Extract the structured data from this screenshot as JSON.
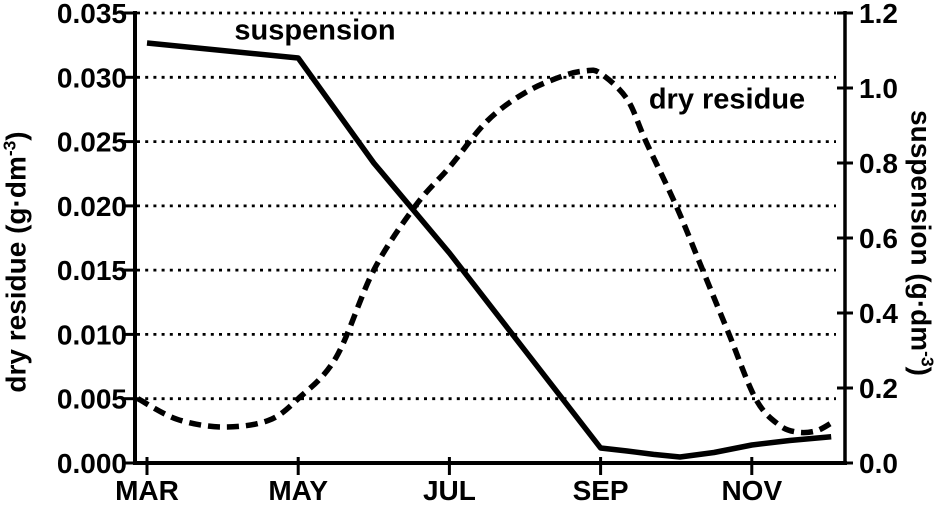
{
  "colors": {
    "foreground": "#000000",
    "background": "#ffffff"
  },
  "chart_data": {
    "type": "line",
    "title": "",
    "x_axis": {
      "unit": "month",
      "ticks": [
        {
          "month": 3,
          "label": "MAR"
        },
        {
          "month": 5,
          "label": "MAY"
        },
        {
          "month": 7,
          "label": "JUL"
        },
        {
          "month": 9,
          "label": "SEP"
        },
        {
          "month": 11,
          "label": "NOV"
        }
      ],
      "range_months": [
        2.83,
        12.23
      ]
    },
    "left_axis": {
      "title": {
        "prefix": "dry residue (g·dm",
        "sup": "-3",
        "suffix": ")"
      },
      "min": 0,
      "max": 0.035,
      "ticks": [
        {
          "v": 0.035,
          "label": "0.035"
        },
        {
          "v": 0.03,
          "label": "0.030"
        },
        {
          "v": 0.025,
          "label": "0.025"
        },
        {
          "v": 0.02,
          "label": "0.020"
        },
        {
          "v": 0.015,
          "label": "0.015"
        },
        {
          "v": 0.01,
          "label": "0.010"
        },
        {
          "v": 0.005,
          "label": "0.005"
        },
        {
          "v": 0.0,
          "label": "0.000"
        }
      ],
      "gridlines_dotted": true
    },
    "right_axis": {
      "title": {
        "prefix": "suspension (g·dm",
        "sup": "-3",
        "suffix": ")"
      },
      "min": 0,
      "max": 1.2,
      "ticks": [
        {
          "v": 1.2,
          "label": "1.2"
        },
        {
          "v": 1.0,
          "label": "1.0"
        },
        {
          "v": 0.8,
          "label": "0.8"
        },
        {
          "v": 0.6,
          "label": "0.6"
        },
        {
          "v": 0.4,
          "label": "0.4"
        },
        {
          "v": 0.2,
          "label": "0.2"
        },
        {
          "v": 0.0,
          "label": "0.0"
        }
      ]
    },
    "series": [
      {
        "id": "suspension",
        "label": "suspension",
        "axis": "right",
        "line_style": "solid",
        "color": "#000000",
        "smooth": false,
        "points": [
          [
            3.0,
            1.12
          ],
          [
            5.0,
            1.08
          ],
          [
            6.0,
            0.8
          ],
          [
            7.0,
            0.56
          ],
          [
            8.0,
            0.3
          ],
          [
            9.0,
            0.04
          ],
          [
            9.35,
            0.032
          ],
          [
            9.7,
            0.023
          ],
          [
            10.05,
            0.016
          ],
          [
            10.5,
            0.028
          ],
          [
            11.0,
            0.048
          ],
          [
            11.5,
            0.06
          ],
          [
            12.05,
            0.07
          ]
        ]
      },
      {
        "id": "dry-residue",
        "label": "dry residue",
        "axis": "left",
        "line_style": "dashed",
        "color": "#000000",
        "smooth": true,
        "points": [
          [
            2.88,
            0.005
          ],
          [
            3.4,
            0.0034
          ],
          [
            4.0,
            0.0028
          ],
          [
            4.6,
            0.0033
          ],
          [
            5.0,
            0.005
          ],
          [
            5.5,
            0.0082
          ],
          [
            6.0,
            0.015
          ],
          [
            6.55,
            0.02
          ],
          [
            7.0,
            0.023
          ],
          [
            7.5,
            0.0266
          ],
          [
            8.0,
            0.0288
          ],
          [
            8.5,
            0.0301
          ],
          [
            8.8,
            0.0305
          ],
          [
            9.0,
            0.0303
          ],
          [
            9.35,
            0.0283
          ],
          [
            9.6,
            0.025
          ],
          [
            10.0,
            0.02
          ],
          [
            10.35,
            0.015
          ],
          [
            10.7,
            0.01
          ],
          [
            11.05,
            0.005
          ],
          [
            11.35,
            0.003
          ],
          [
            11.6,
            0.0024
          ],
          [
            11.85,
            0.0025
          ],
          [
            12.05,
            0.0031
          ]
        ]
      }
    ]
  }
}
